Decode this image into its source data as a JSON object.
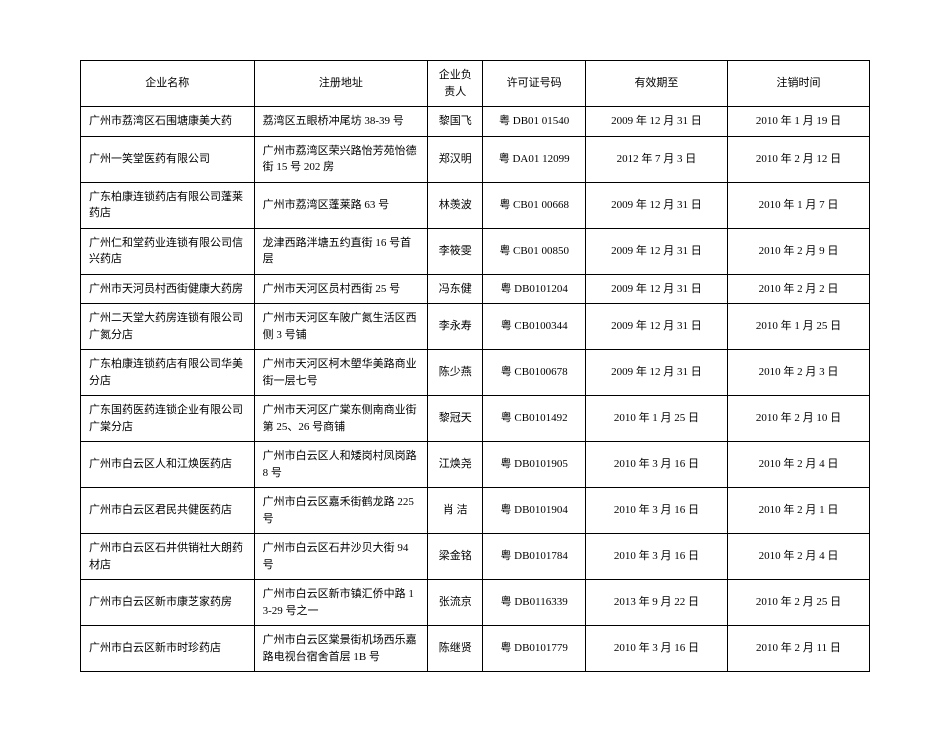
{
  "table": {
    "columns": [
      "企业名称",
      "注册地址",
      "企业负责人",
      "许可证号码",
      "有效期至",
      "注销时间"
    ],
    "rows": [
      [
        "广州市荔湾区石围塘康美大药",
        "荔湾区五眼桥冲尾坊 38-39 号",
        "黎国飞",
        "粤 DB01 01540",
        "2009 年 12 月 31 日",
        "2010 年 1 月 19 日"
      ],
      [
        "广州一笑堂医药有限公司",
        "广州市荔湾区荣兴路怡芳苑怡德街 15 号 202 房",
        "郑汉明",
        "粤 DA01 12099",
        "2012 年 7 月 3 日",
        "2010 年 2 月 12 日"
      ],
      [
        "广东柏康连锁药店有限公司蓬莱药店",
        "广州市荔湾区蓬莱路 63 号",
        "林羡波",
        "粤 CB01 00668",
        "2009 年 12 月 31 日",
        "2010 年 1 月 7 日"
      ],
      [
        "广州仁和堂药业连锁有限公司信兴药店",
        "龙津西路泮塘五约直街 16 号首层",
        "李筱雯",
        "粤 CB01 00850",
        "2009 年 12 月 31 日",
        "2010 年 2 月 9 日"
      ],
      [
        "广州市天河员村西街健康大药房",
        "广州市天河区员村西街 25 号",
        "冯东健",
        "粤 DB0101204",
        "2009 年 12 月 31 日",
        "2010 年 2 月 2 日"
      ],
      [
        "广州二天堂大药房连锁有限公司广氮分店",
        "广州市天河区车陂广氮生活区西侧 3 号铺",
        "李永寿",
        "粤 CB0100344",
        "2009 年 12 月 31 日",
        "2010 年 1 月 25 日"
      ],
      [
        "广东柏康连锁药店有限公司华美分店",
        "广州市天河区柯木塱华美路商业街一层七号",
        "陈少燕",
        "粤 CB0100678",
        "2009 年 12 月 31 日",
        "2010 年 2 月 3 日"
      ],
      [
        "广东国药医药连锁企业有限公司广棠分店",
        "广州市天河区广棠东侧南商业街第 25、26 号商铺",
        "黎冠天",
        "粤 CB0101492",
        "2010 年 1 月 25 日",
        "2010 年 2 月 10 日"
      ],
      [
        "广州市白云区人和江焕医药店",
        "广州市白云区人和矮岗村凤岗路 8 号",
        "江焕尧",
        "粤 DB0101905",
        "2010 年 3 月 16 日",
        "2010 年 2 月 4 日"
      ],
      [
        "广州市白云区君民共健医药店",
        "广州市白云区嘉禾街鹤龙路 225 号",
        "肖  洁",
        "粤 DB0101904",
        "2010 年 3 月 16 日",
        "2010 年 2 月 1 日"
      ],
      [
        "广州市白云区石井供销社大朗药材店",
        "广州市白云区石井沙贝大街 94 号",
        "梁金铭",
        "粤 DB0101784",
        "2010 年 3 月 16 日",
        "2010 年 2 月 4 日"
      ],
      [
        "广州市白云区新市康芝家药房",
        "广州市白云区新市镇汇侨中路 13-29 号之一",
        "张流京",
        "粤 DB0116339",
        "2013 年 9 月 22 日",
        "2010 年 2 月 25 日"
      ],
      [
        "广州市白云区新市时珍药店",
        "广州市白云区棠景街机场西乐嘉路电视台宿舍首层 1B 号",
        "陈继贤",
        "粤 DB0101779",
        "2010 年 3 月 16 日",
        "2010 年 2 月 11 日"
      ]
    ]
  }
}
